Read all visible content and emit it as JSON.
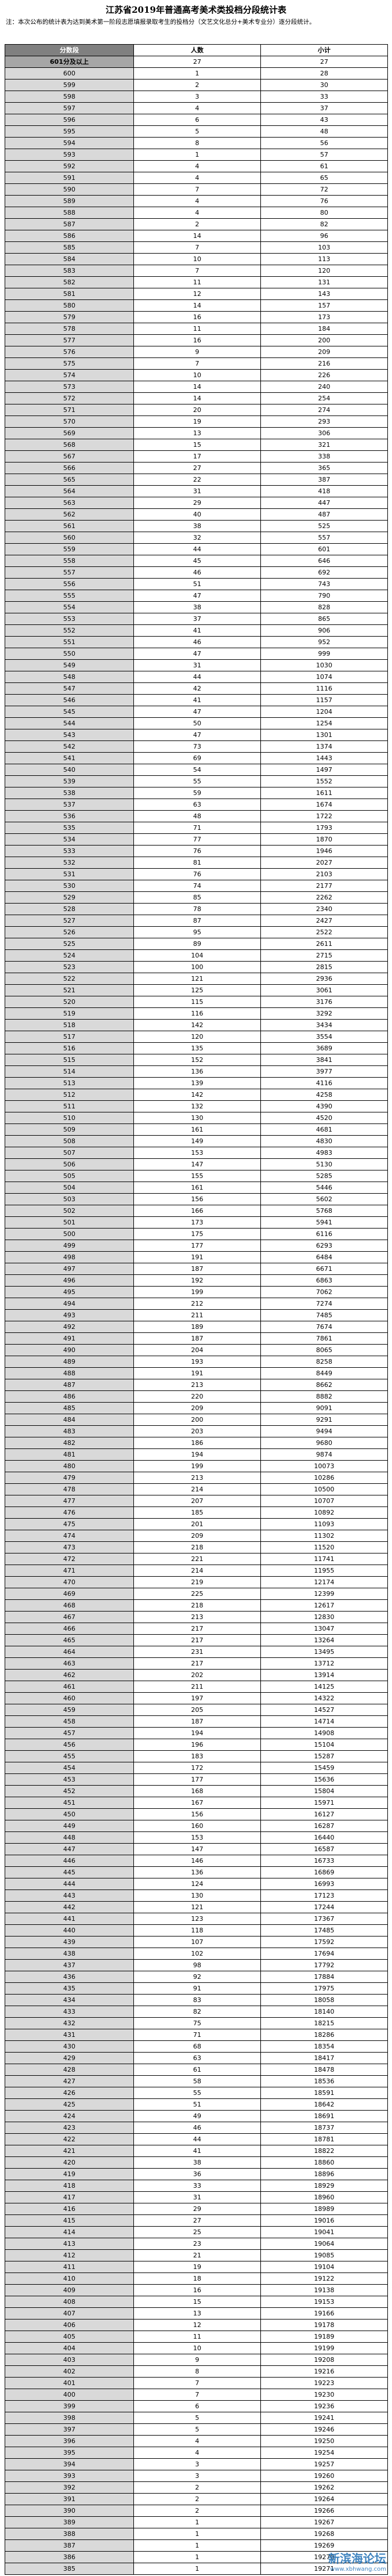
{
  "title": "江苏省2019年普通高考美术类投档分段统计表",
  "note": "注：本次公布的统计表为达到美术第一阶段志愿填报录取考生的投档分（文艺文化总分+美术专业分）逐分段统计。",
  "table": {
    "header": [
      "分数段",
      "人数",
      "小计"
    ],
    "rows": [
      [
        "601分及以上",
        27,
        27
      ],
      [
        600,
        1,
        28
      ],
      [
        599,
        2,
        30
      ],
      [
        598,
        3,
        33
      ],
      [
        597,
        4,
        37
      ],
      [
        596,
        6,
        43
      ],
      [
        595,
        5,
        48
      ],
      [
        594,
        8,
        56
      ],
      [
        593,
        1,
        57
      ],
      [
        592,
        4,
        61
      ],
      [
        591,
        4,
        65
      ],
      [
        590,
        7,
        72
      ],
      [
        589,
        4,
        76
      ],
      [
        588,
        4,
        80
      ],
      [
        587,
        2,
        82
      ],
      [
        586,
        14,
        96
      ],
      [
        585,
        7,
        103
      ],
      [
        584,
        10,
        113
      ],
      [
        583,
        7,
        120
      ],
      [
        582,
        11,
        131
      ],
      [
        581,
        12,
        143
      ],
      [
        580,
        14,
        157
      ],
      [
        579,
        16,
        173
      ],
      [
        578,
        11,
        184
      ],
      [
        577,
        16,
        200
      ],
      [
        576,
        9,
        209
      ],
      [
        575,
        7,
        216
      ],
      [
        574,
        10,
        226
      ],
      [
        573,
        14,
        240
      ],
      [
        572,
        14,
        254
      ],
      [
        571,
        20,
        274
      ],
      [
        570,
        19,
        293
      ],
      [
        569,
        13,
        306
      ],
      [
        568,
        15,
        321
      ],
      [
        567,
        17,
        338
      ],
      [
        566,
        27,
        365
      ],
      [
        565,
        22,
        387
      ],
      [
        564,
        31,
        418
      ],
      [
        563,
        29,
        447
      ],
      [
        562,
        40,
        487
      ],
      [
        561,
        38,
        525
      ],
      [
        560,
        32,
        557
      ],
      [
        559,
        44,
        601
      ],
      [
        558,
        45,
        646
      ],
      [
        557,
        46,
        692
      ],
      [
        556,
        51,
        743
      ],
      [
        555,
        47,
        790
      ],
      [
        554,
        38,
        828
      ],
      [
        553,
        37,
        865
      ],
      [
        552,
        41,
        906
      ],
      [
        551,
        46,
        952
      ],
      [
        550,
        47,
        999
      ],
      [
        549,
        31,
        1030
      ],
      [
        548,
        44,
        1074
      ],
      [
        547,
        42,
        1116
      ],
      [
        546,
        41,
        1157
      ],
      [
        545,
        47,
        1204
      ],
      [
        544,
        50,
        1254
      ],
      [
        543,
        47,
        1301
      ],
      [
        542,
        73,
        1374
      ],
      [
        541,
        69,
        1443
      ],
      [
        540,
        54,
        1497
      ],
      [
        539,
        55,
        1552
      ],
      [
        538,
        59,
        1611
      ],
      [
        537,
        63,
        1674
      ],
      [
        536,
        48,
        1722
      ],
      [
        535,
        71,
        1793
      ],
      [
        534,
        77,
        1870
      ],
      [
        533,
        76,
        1946
      ],
      [
        532,
        81,
        2027
      ],
      [
        531,
        76,
        2103
      ],
      [
        530,
        74,
        2177
      ],
      [
        529,
        85,
        2262
      ],
      [
        528,
        78,
        2340
      ],
      [
        527,
        87,
        2427
      ],
      [
        526,
        95,
        2522
      ],
      [
        525,
        89,
        2611
      ],
      [
        524,
        104,
        2715
      ],
      [
        523,
        100,
        2815
      ],
      [
        522,
        121,
        2936
      ],
      [
        521,
        125,
        3061
      ],
      [
        520,
        115,
        3176
      ],
      [
        519,
        116,
        3292
      ],
      [
        518,
        142,
        3434
      ],
      [
        517,
        120,
        3554
      ],
      [
        516,
        135,
        3689
      ],
      [
        515,
        152,
        3841
      ],
      [
        514,
        136,
        3977
      ],
      [
        513,
        139,
        4116
      ],
      [
        512,
        142,
        4258
      ],
      [
        511,
        132,
        4390
      ],
      [
        510,
        130,
        4520
      ],
      [
        509,
        161,
        4681
      ],
      [
        508,
        149,
        4830
      ],
      [
        507,
        153,
        4983
      ],
      [
        506,
        147,
        5130
      ],
      [
        505,
        155,
        5285
      ],
      [
        504,
        161,
        5446
      ],
      [
        503,
        156,
        5602
      ],
      [
        502,
        166,
        5768
      ],
      [
        501,
        173,
        5941
      ],
      [
        500,
        175,
        6116
      ],
      [
        499,
        177,
        6293
      ],
      [
        498,
        191,
        6484
      ],
      [
        497,
        187,
        6671
      ],
      [
        496,
        192,
        6863
      ],
      [
        495,
        199,
        7062
      ],
      [
        494,
        212,
        7274
      ],
      [
        493,
        211,
        7485
      ],
      [
        492,
        189,
        7674
      ],
      [
        491,
        187,
        7861
      ],
      [
        490,
        204,
        8065
      ],
      [
        489,
        193,
        8258
      ],
      [
        488,
        191,
        8449
      ],
      [
        487,
        213,
        8662
      ],
      [
        486,
        220,
        8882
      ],
      [
        485,
        209,
        9091
      ],
      [
        484,
        200,
        9291
      ],
      [
        483,
        203,
        9494
      ],
      [
        482,
        186,
        9680
      ],
      [
        481,
        194,
        9874
      ],
      [
        480,
        199,
        10073
      ],
      [
        479,
        213,
        10286
      ],
      [
        478,
        214,
        10500
      ],
      [
        477,
        207,
        10707
      ],
      [
        476,
        185,
        10892
      ],
      [
        475,
        201,
        11093
      ],
      [
        474,
        209,
        11302
      ],
      [
        473,
        218,
        11520
      ],
      [
        472,
        221,
        11741
      ],
      [
        471,
        214,
        11955
      ],
      [
        470,
        219,
        12174
      ],
      [
        469,
        225,
        12399
      ],
      [
        468,
        218,
        12617
      ],
      [
        467,
        213,
        12830
      ],
      [
        466,
        217,
        13047
      ],
      [
        465,
        217,
        13264
      ],
      [
        464,
        231,
        13495
      ],
      [
        463,
        217,
        13712
      ],
      [
        462,
        202,
        13914
      ],
      [
        461,
        211,
        14125
      ],
      [
        460,
        197,
        14322
      ],
      [
        459,
        205,
        14527
      ],
      [
        458,
        187,
        14714
      ],
      [
        457,
        194,
        14908
      ],
      [
        456,
        196,
        15104
      ],
      [
        455,
        183,
        15287
      ],
      [
        454,
        172,
        15459
      ],
      [
        453,
        177,
        15636
      ],
      [
        452,
        168,
        15804
      ],
      [
        451,
        167,
        15971
      ],
      [
        450,
        156,
        16127
      ],
      [
        449,
        160,
        16287
      ],
      [
        448,
        153,
        16440
      ],
      [
        447,
        147,
        16587
      ],
      [
        446,
        146,
        16733
      ],
      [
        445,
        136,
        16869
      ],
      [
        444,
        124,
        16993
      ],
      [
        443,
        130,
        17123
      ],
      [
        442,
        121,
        17244
      ],
      [
        441,
        123,
        17367
      ],
      [
        440,
        118,
        17485
      ],
      [
        439,
        107,
        17592
      ],
      [
        438,
        102,
        17694
      ],
      [
        437,
        98,
        17792
      ],
      [
        436,
        92,
        17884
      ],
      [
        435,
        91,
        17975
      ],
      [
        434,
        83,
        18058
      ],
      [
        433,
        82,
        18140
      ],
      [
        432,
        75,
        18215
      ],
      [
        431,
        71,
        18286
      ],
      [
        430,
        68,
        18354
      ],
      [
        429,
        63,
        18417
      ],
      [
        428,
        61,
        18478
      ],
      [
        427,
        58,
        18536
      ],
      [
        426,
        55,
        18591
      ],
      [
        425,
        51,
        18642
      ],
      [
        424,
        49,
        18691
      ],
      [
        423,
        46,
        18737
      ],
      [
        422,
        44,
        18781
      ],
      [
        421,
        41,
        18822
      ],
      [
        420,
        38,
        18860
      ],
      [
        419,
        36,
        18896
      ],
      [
        418,
        33,
        18929
      ],
      [
        417,
        31,
        18960
      ],
      [
        416,
        29,
        18989
      ],
      [
        415,
        27,
        19016
      ],
      [
        414,
        25,
        19041
      ],
      [
        413,
        23,
        19064
      ],
      [
        412,
        21,
        19085
      ],
      [
        411,
        19,
        19104
      ],
      [
        410,
        18,
        19122
      ],
      [
        409,
        16,
        19138
      ],
      [
        408,
        15,
        19153
      ],
      [
        407,
        13,
        19166
      ],
      [
        406,
        12,
        19178
      ],
      [
        405,
        11,
        19189
      ],
      [
        404,
        10,
        19199
      ],
      [
        403,
        9,
        19208
      ],
      [
        402,
        8,
        19216
      ],
      [
        401,
        7,
        19223
      ],
      [
        400,
        7,
        19230
      ],
      [
        399,
        6,
        19236
      ],
      [
        398,
        5,
        19241
      ],
      [
        397,
        5,
        19246
      ],
      [
        396,
        4,
        19250
      ],
      [
        395,
        4,
        19254
      ],
      [
        394,
        3,
        19257
      ],
      [
        393,
        3,
        19260
      ],
      [
        392,
        2,
        19262
      ],
      [
        391,
        2,
        19264
      ],
      [
        390,
        2,
        19266
      ],
      [
        389,
        1,
        19267
      ],
      [
        388,
        1,
        19268
      ],
      [
        387,
        1,
        19269
      ],
      [
        386,
        1,
        19270
      ],
      [
        385,
        1,
        19271
      ]
    ]
  },
  "watermark": {
    "name": "新滨海论坛",
    "url": "www.xbhwang.com"
  }
}
